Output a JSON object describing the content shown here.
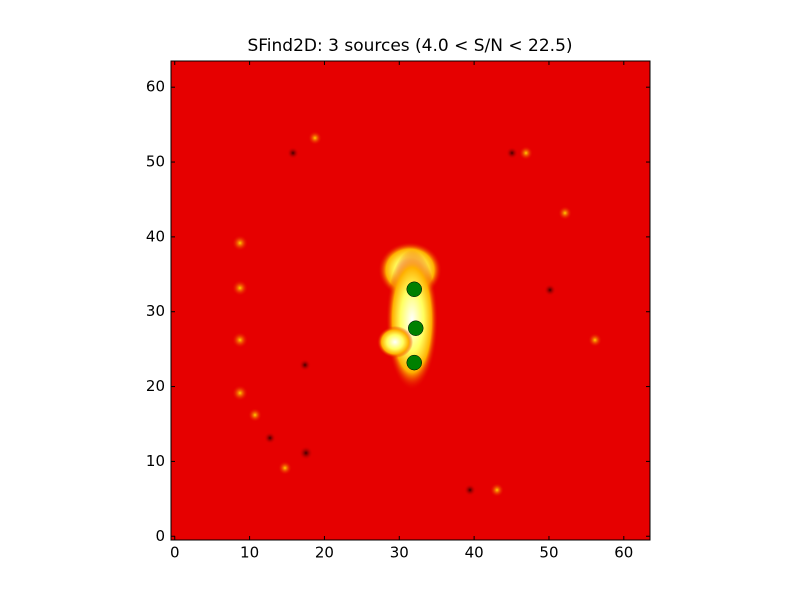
{
  "chart_data": {
    "type": "scatter",
    "title": "SFind2D: 3 sources (4.0 < S/N < 22.5)",
    "x": [
      32,
      32.2,
      32
    ],
    "values": [
      33,
      27.8,
      23.2
    ],
    "color": "#008000",
    "xlim": [
      -0.5,
      63.5
    ],
    "xticks": [
      0,
      10,
      20,
      30,
      40,
      50,
      60
    ],
    "ylim": [
      -0.5,
      63.5
    ],
    "yticks": [
      0,
      10,
      20,
      30,
      40,
      50,
      60
    ]
  }
}
